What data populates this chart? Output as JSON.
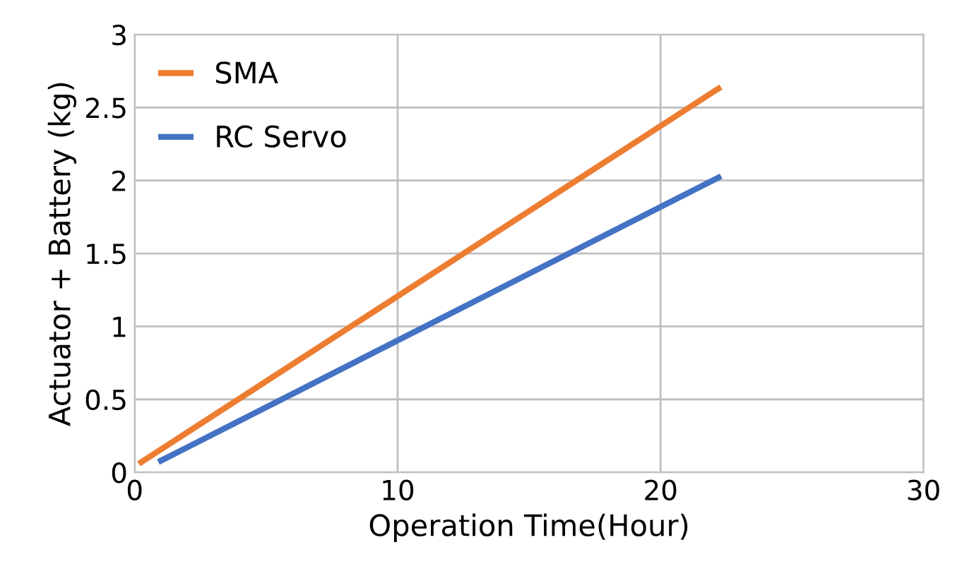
{
  "chart_data": {
    "type": "line",
    "xlabel": "Operation Time(Hour)",
    "ylabel": "Actuator + Battery (kg)",
    "series": [
      {
        "name": "SMA",
        "color": "#ed7d31",
        "x": [
          0.25,
          22.2
        ],
        "values": [
          0.07,
          2.63
        ]
      },
      {
        "name": "RC Servo",
        "color": "#4472c4",
        "x": [
          1.0,
          22.2
        ],
        "values": [
          0.08,
          2.02
        ]
      }
    ],
    "xlim": [
      0,
      30
    ],
    "xticks": [
      0,
      10,
      20,
      30
    ],
    "ylim": [
      0,
      3
    ],
    "yticks": [
      0,
      0.5,
      1,
      1.5,
      2,
      2.5,
      3
    ],
    "grid": true,
    "legend": "top left",
    "marker": "none",
    "line_style": "solid"
  }
}
